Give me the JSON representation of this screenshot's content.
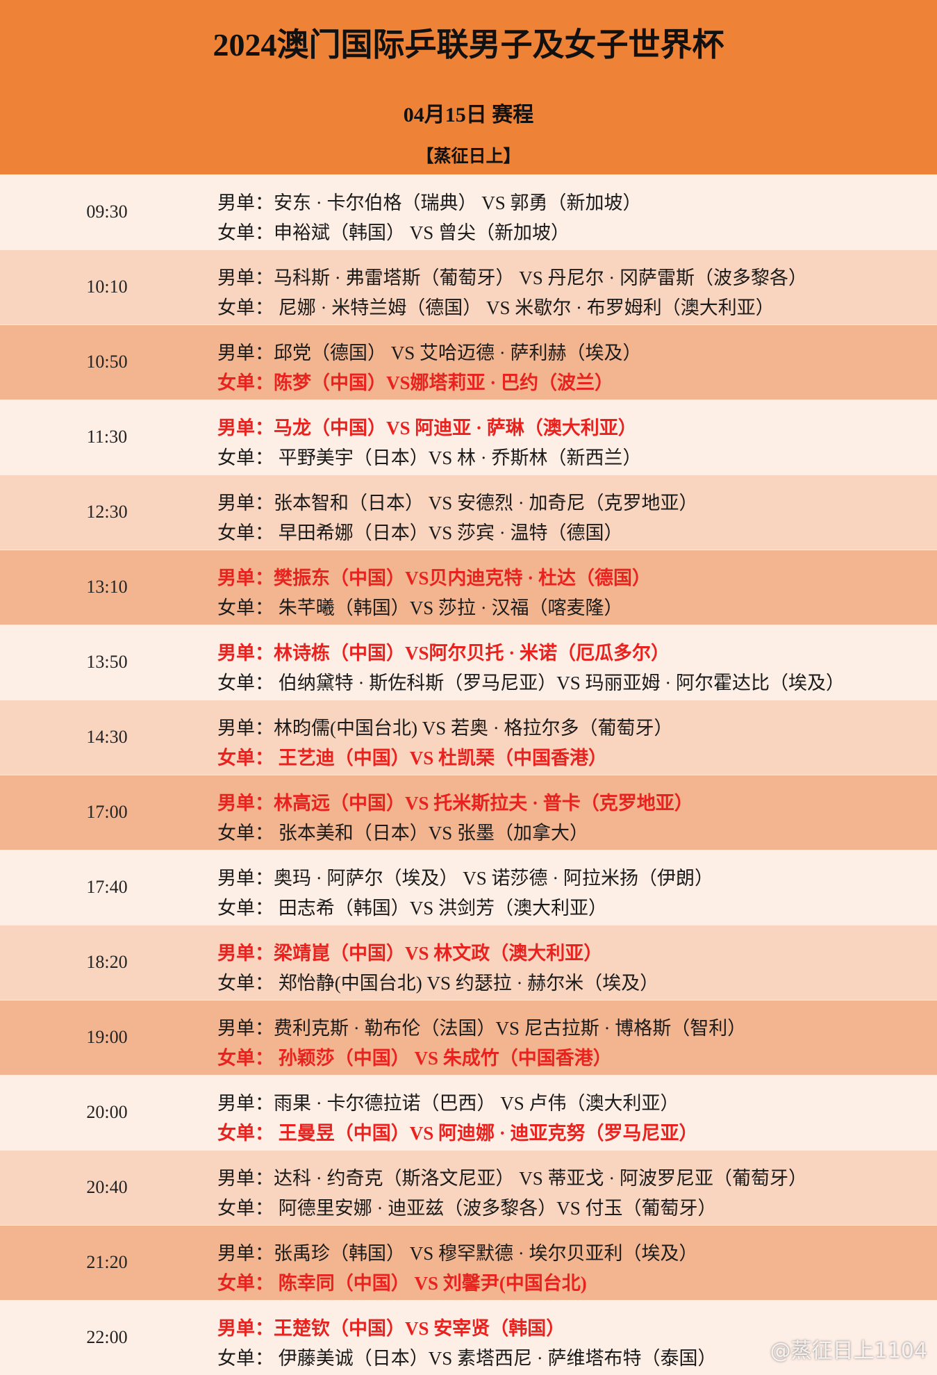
{
  "header": {
    "title": "2024澳门国际乒联男子及女子世界杯",
    "date": "04月15日 赛程",
    "author": "【蒸征日上】"
  },
  "schedule": [
    {
      "time": "09:30",
      "matches": [
        {
          "text": "男单：安东 · 卡尔伯格（瑞典） VS 郭勇（新加坡）",
          "color": "#1a1a1a"
        },
        {
          "text": "女单：申裕斌（韩国） VS 曾尖（新加坡）",
          "color": "#1a1a1a"
        }
      ]
    },
    {
      "time": "10:10",
      "matches": [
        {
          "text": "男单：马科斯 · 弗雷塔斯（葡萄牙） VS 丹尼尔 · 冈萨雷斯（波多黎各）",
          "color": "#1a1a1a"
        },
        {
          "text": "女单： 尼娜 · 米特兰姆（德国） VS 米歇尔 · 布罗姆利（澳大利亚）",
          "color": "#1a1a1a"
        }
      ]
    },
    {
      "time": "10:50",
      "matches": [
        {
          "text": "男单：邱党（德国） VS 艾哈迈德 · 萨利赫（埃及）",
          "color": "#1a1a1a"
        },
        {
          "text": "女单：陈梦（中国）VS娜塔莉亚 · 巴约（波兰）",
          "color": "#e8231f"
        }
      ]
    },
    {
      "time": "11:30",
      "matches": [
        {
          "text": "男单：马龙（中国）VS 阿迪亚 · 萨琳（澳大利亚）",
          "color": "#e8231f"
        },
        {
          "text": "女单： 平野美宇（日本）VS 林 · 乔斯林（新西兰）",
          "color": "#1a1a1a"
        }
      ]
    },
    {
      "time": "12:30",
      "matches": [
        {
          "text": "男单：张本智和（日本） VS 安德烈 · 加奇尼（克罗地亚）",
          "color": "#1a1a1a"
        },
        {
          "text": "女单： 早田希娜（日本）VS 莎宾 · 温特（德国）",
          "color": "#1a1a1a"
        }
      ]
    },
    {
      "time": "13:10",
      "matches": [
        {
          "text": "男单：樊振东（中国）VS贝内迪克特 · 杜达（德国）",
          "color": "#e8231f"
        },
        {
          "text": "女单： 朱芊曦（韩国）VS 莎拉 · 汉福（喀麦隆）",
          "color": "#1a1a1a"
        }
      ]
    },
    {
      "time": "13:50",
      "matches": [
        {
          "text": "男单：林诗栋（中国）VS阿尔贝托 · 米诺（厄瓜多尔）",
          "color": "#e8231f"
        },
        {
          "text": "女单： 伯纳黛特 · 斯佐科斯（罗马尼亚）VS 玛丽亚姆 · 阿尔霍达比（埃及）",
          "color": "#1a1a1a"
        }
      ]
    },
    {
      "time": "14:30",
      "matches": [
        {
          "text": "男单：林昀儒(中国台北) VS 若奥 · 格拉尔多（葡萄牙）",
          "color": "#1a1a1a"
        },
        {
          "text": "女单： 王艺迪（中国）VS 杜凯琹（中国香港）",
          "color": "#e8231f"
        }
      ]
    },
    {
      "time": "17:00",
      "matches": [
        {
          "text": "男单：林高远（中国）VS 托米斯拉夫 · 普卡（克罗地亚）",
          "color": "#e8231f"
        },
        {
          "text": "女单： 张本美和（日本）VS 张墨（加拿大）",
          "color": "#1a1a1a"
        }
      ]
    },
    {
      "time": "17:40",
      "matches": [
        {
          "text": "男单：奥玛 · 阿萨尔（埃及） VS 诺莎德 · 阿拉米扬（伊朗）",
          "color": "#1a1a1a"
        },
        {
          "text": "女单： 田志希（韩国）VS 洪剑芳（澳大利亚）",
          "color": "#1a1a1a"
        }
      ]
    },
    {
      "time": "18:20",
      "matches": [
        {
          "text": "男单：梁靖崑（中国）VS 林文政（澳大利亚）",
          "color": "#e8231f"
        },
        {
          "text": "女单： 郑怡静(中国台北) VS 约瑟拉 · 赫尔米（埃及）",
          "color": "#1a1a1a"
        }
      ]
    },
    {
      "time": "19:00",
      "matches": [
        {
          "text": "男单：费利克斯 · 勒布伦（法国）VS 尼古拉斯 · 博格斯（智利）",
          "color": "#1a1a1a"
        },
        {
          "text": "女单： 孙颖莎（中国） VS 朱成竹（中国香港）",
          "color": "#e8231f"
        }
      ]
    },
    {
      "time": "20:00",
      "matches": [
        {
          "text": "男单：雨果 · 卡尔德拉诺（巴西） VS 卢伟（澳大利亚）",
          "color": "#1a1a1a"
        },
        {
          "text": "女单： 王曼昱（中国）VS 阿迪娜 · 迪亚克努（罗马尼亚）",
          "color": "#e8231f"
        }
      ]
    },
    {
      "time": "20:40",
      "matches": [
        {
          "text": "男单：达科 · 约奇克（斯洛文尼亚） VS 蒂亚戈 · 阿波罗尼亚（葡萄牙）",
          "color": "#1a1a1a"
        },
        {
          "text": "女单： 阿德里安娜 · 迪亚兹（波多黎各）VS 付玉（葡萄牙）",
          "color": "#1a1a1a"
        }
      ]
    },
    {
      "time": "21:20",
      "matches": [
        {
          "text": "男单：张禹珍（韩国） VS 穆罕默德 · 埃尔贝亚利（埃及）",
          "color": "#1a1a1a"
        },
        {
          "text": "女单： 陈幸同（中国） VS 刘馨尹(中国台北)",
          "color": "#e8231f"
        }
      ]
    },
    {
      "time": "22:00",
      "matches": [
        {
          "text": "男单：王楚钦（中国）VS 安宰贤（韩国）",
          "color": "#e8231f"
        },
        {
          "text": "女单： 伊藤美诚（日本）VS 素塔西尼 · 萨维塔布特（泰国）",
          "color": "#1a1a1a"
        }
      ]
    }
  ],
  "watermark": "@蒸征日上1104"
}
